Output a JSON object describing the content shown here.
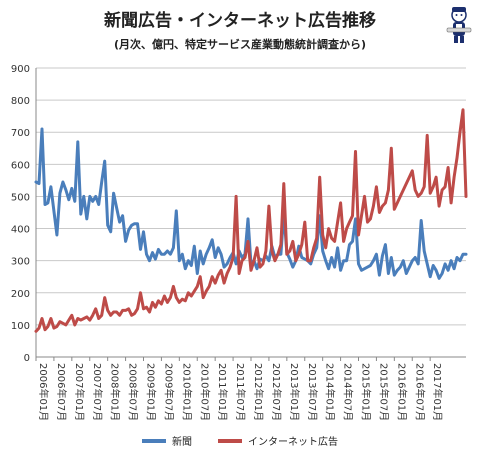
{
  "header": {
    "title": "新聞広告・インターネット広告推移",
    "subtitle": "(月次、億円、特定サービス産業動態統計調査から)"
  },
  "chart_data": {
    "type": "line",
    "title": "新聞広告・インターネット広告推移",
    "subtitle": "(月次、億円、特定サービス産業動態統計調査から)",
    "xlabel": "",
    "ylabel": "",
    "ylim": [
      0,
      900
    ],
    "yticks": [
      0,
      100,
      200,
      300,
      400,
      500,
      600,
      700,
      800,
      900
    ],
    "grid": true,
    "legend_position": "bottom",
    "x_tick_labels": [
      "2006年01月",
      "2006年07月",
      "2007年01月",
      "2007年07月",
      "2008年01月",
      "2008年07月",
      "2009年01月",
      "2009年07月",
      "2010年01月",
      "2010年07月",
      "2011年01月",
      "2011年07月",
      "2012年01月",
      "2012年07月",
      "2013年01月",
      "2013年07月",
      "2014年01月",
      "2014年07月",
      "2015年01月",
      "2015年07月",
      "2016年01月",
      "2016年07月",
      "2017年01月"
    ],
    "x_start": "2006年01月",
    "series": [
      {
        "name": "新聞",
        "color": "#4a7ebb",
        "values": [
          545,
          540,
          710,
          475,
          480,
          530,
          455,
          380,
          510,
          545,
          520,
          490,
          525,
          485,
          670,
          445,
          500,
          430,
          500,
          485,
          500,
          475,
          545,
          610,
          410,
          390,
          510,
          465,
          420,
          440,
          360,
          395,
          410,
          415,
          415,
          335,
          390,
          320,
          300,
          325,
          305,
          335,
          320,
          320,
          330,
          320,
          340,
          455,
          300,
          320,
          275,
          300,
          285,
          345,
          260,
          330,
          290,
          320,
          340,
          365,
          310,
          340,
          320,
          280,
          290,
          310,
          325,
          290,
          330,
          310,
          320,
          430,
          290,
          300,
          275,
          305,
          300,
          315,
          300,
          345,
          310,
          320,
          320,
          450,
          325,
          305,
          280,
          300,
          345,
          310,
          305,
          300,
          290,
          320,
          340,
          440,
          330,
          300,
          275,
          310,
          280,
          340,
          270,
          300,
          300,
          350,
          360,
          430,
          290,
          270,
          275,
          280,
          285,
          300,
          320,
          255,
          315,
          350,
          260,
          310,
          255,
          270,
          280,
          300,
          260,
          280,
          300,
          310,
          290,
          425,
          330,
          290,
          250,
          285,
          270,
          245,
          260,
          290,
          270,
          300,
          275,
          310,
          300,
          320,
          320
        ]
      },
      {
        "name": "インターネット広告",
        "color": "#be4b48",
        "values": [
          80,
          90,
          120,
          85,
          95,
          120,
          90,
          95,
          110,
          105,
          100,
          115,
          130,
          100,
          120,
          115,
          120,
          125,
          115,
          130,
          150,
          120,
          130,
          185,
          145,
          130,
          140,
          140,
          130,
          145,
          145,
          150,
          130,
          135,
          150,
          200,
          150,
          155,
          140,
          170,
          155,
          175,
          165,
          190,
          170,
          185,
          220,
          185,
          170,
          180,
          175,
          200,
          190,
          205,
          220,
          250,
          185,
          205,
          220,
          250,
          230,
          255,
          270,
          230,
          260,
          280,
          310,
          500,
          260,
          300,
          310,
          360,
          270,
          300,
          340,
          280,
          290,
          330,
          470,
          330,
          300,
          320,
          350,
          540,
          320,
          330,
          360,
          300,
          320,
          350,
          420,
          300,
          300,
          340,
          370,
          560,
          380,
          340,
          400,
          370,
          360,
          420,
          480,
          360,
          400,
          420,
          440,
          640,
          380,
          440,
          500,
          420,
          430,
          470,
          530,
          450,
          470,
          480,
          520,
          650,
          460,
          480,
          500,
          520,
          540,
          560,
          580,
          520,
          500,
          510,
          530,
          690,
          510,
          530,
          560,
          470,
          520,
          530,
          590,
          480,
          560,
          620,
          700,
          770,
          500
        ]
      }
    ]
  },
  "legend": [
    {
      "label": "新聞",
      "color": "#4a7ebb"
    },
    {
      "label": "インターネット広告",
      "color": "#be4b48"
    }
  ]
}
